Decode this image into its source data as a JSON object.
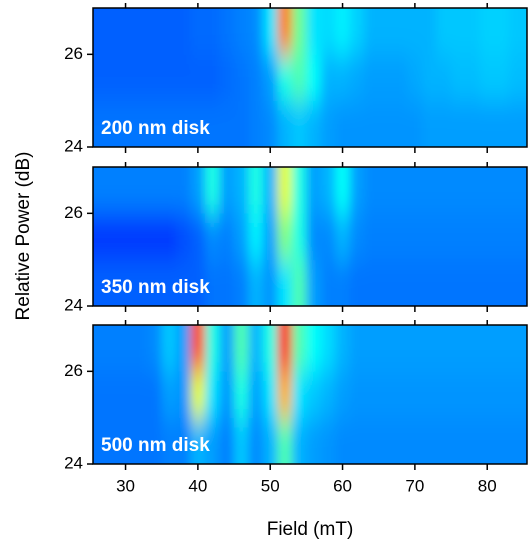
{
  "chart_data": [
    {
      "type": "heatmap",
      "annotation": "200 nm disk",
      "colormap": "jet",
      "zlim": [
        0,
        100
      ],
      "x": [
        26,
        28,
        30,
        32,
        34,
        36,
        38,
        40,
        42,
        44,
        46,
        48,
        50,
        52,
        54,
        56,
        58,
        60,
        62,
        64,
        66,
        68,
        70,
        72,
        74,
        76,
        78,
        80,
        82,
        84
      ],
      "y": [
        24.5,
        25.5,
        26.5
      ],
      "z": [
        [
          24,
          24,
          24,
          24,
          24,
          24,
          24,
          24,
          24,
          24,
          24,
          25,
          26,
          30,
          32,
          30,
          28,
          27,
          27,
          27,
          27,
          27,
          27,
          28,
          28,
          28,
          28,
          28,
          28,
          28
        ],
        [
          22,
          22,
          22,
          22,
          22,
          22,
          22,
          22,
          22,
          23,
          24,
          25,
          28,
          40,
          45,
          38,
          30,
          30,
          29,
          28,
          28,
          28,
          29,
          30,
          30,
          31,
          31,
          32,
          32,
          31
        ],
        [
          22,
          22,
          22,
          22,
          22,
          22,
          22,
          23,
          23,
          24,
          25,
          26,
          35,
          75,
          48,
          35,
          34,
          36,
          33,
          30,
          30,
          30,
          30,
          30,
          32,
          32,
          32,
          33,
          33,
          32
        ]
      ],
      "xlim": [
        25.5,
        85.5
      ],
      "ylim": [
        24,
        27
      ],
      "xticks": [
        30,
        40,
        50,
        60,
        70,
        80
      ],
      "yticks": [
        24,
        26
      ]
    },
    {
      "type": "heatmap",
      "annotation": "350 nm disk",
      "colormap": "jet",
      "zlim": [
        0,
        100
      ],
      "ylabel": "Relative Power (dB)",
      "x": [
        26,
        28,
        30,
        32,
        34,
        36,
        38,
        40,
        42,
        44,
        46,
        48,
        50,
        52,
        54,
        56,
        58,
        60,
        62,
        64,
        66,
        68,
        70,
        72,
        74,
        76,
        78,
        80,
        82,
        84
      ],
      "y": [
        24.5,
        25.5,
        26.5
      ],
      "z": [
        [
          22,
          22,
          22,
          22,
          22,
          22,
          22,
          22,
          24,
          24,
          25,
          30,
          27,
          35,
          45,
          28,
          25,
          25,
          24,
          24,
          24,
          24,
          24,
          24,
          24,
          24,
          24,
          24,
          24,
          24
        ],
        [
          18,
          18,
          18,
          18,
          18,
          18,
          20,
          22,
          26,
          25,
          28,
          36,
          28,
          50,
          40,
          26,
          26,
          30,
          26,
          25,
          25,
          25,
          25,
          25,
          25,
          25,
          25,
          25,
          25,
          25
        ],
        [
          25,
          25,
          25,
          25,
          25,
          25,
          25,
          28,
          40,
          28,
          30,
          40,
          30,
          60,
          40,
          28,
          30,
          38,
          28,
          26,
          26,
          26,
          26,
          26,
          26,
          26,
          26,
          26,
          26,
          26
        ]
      ],
      "xlim": [
        25.5,
        85.5
      ],
      "ylim": [
        24,
        27
      ],
      "xticks": [
        30,
        40,
        50,
        60,
        70,
        80
      ],
      "yticks": [
        24,
        26
      ]
    },
    {
      "type": "heatmap",
      "annotation": "500 nm disk",
      "colormap": "jet",
      "zlim": [
        0,
        100
      ],
      "xlabel": "Field (mT)",
      "x": [
        26,
        28,
        30,
        32,
        34,
        36,
        38,
        40,
        42,
        44,
        46,
        48,
        50,
        52,
        54,
        56,
        58,
        60,
        62,
        64,
        66,
        68,
        70,
        72,
        74,
        76,
        78,
        80,
        82,
        84
      ],
      "y": [
        24.5,
        25.5,
        26.5
      ],
      "z": [
        [
          24,
          24,
          24,
          24,
          24,
          25,
          25,
          30,
          28,
          25,
          32,
          26,
          30,
          45,
          30,
          28,
          27,
          26,
          26,
          26,
          26,
          26,
          26,
          26,
          26,
          26,
          26,
          26,
          26,
          26
        ],
        [
          24,
          24,
          24,
          24,
          24,
          28,
          27,
          60,
          35,
          27,
          40,
          28,
          35,
          70,
          35,
          32,
          30,
          28,
          27,
          27,
          27,
          27,
          27,
          27,
          27,
          27,
          27,
          27,
          27,
          27
        ],
        [
          25,
          25,
          25,
          25,
          26,
          32,
          28,
          80,
          40,
          28,
          45,
          30,
          40,
          85,
          45,
          38,
          34,
          30,
          28,
          28,
          28,
          28,
          28,
          28,
          28,
          28,
          28,
          28,
          28,
          28
        ]
      ],
      "xlim": [
        25.5,
        85.5
      ],
      "ylim": [
        24,
        27
      ],
      "xticks": [
        30,
        40,
        50,
        60,
        70,
        80
      ],
      "yticks": [
        24,
        26
      ]
    }
  ]
}
